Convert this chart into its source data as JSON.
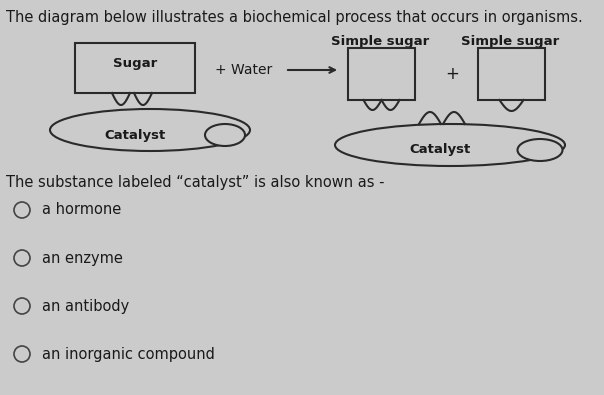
{
  "background_color": "#cbcbcb",
  "title_text": "The diagram below illustrates a biochemical process that occurs in organisms.",
  "title_fontsize": 10.5,
  "question_text": "The substance labeled “catalyst” is also known as -",
  "question_fontsize": 10.5,
  "options": [
    "a hormone",
    "an enzyme",
    "an antibody",
    "an inorganic compound"
  ],
  "options_fontsize": 10.5,
  "text_color": "#1a1a1a",
  "line_color": "#2a2a2a",
  "fill_color": "#cbcbcb",
  "fill_light": "#d8d8d8"
}
